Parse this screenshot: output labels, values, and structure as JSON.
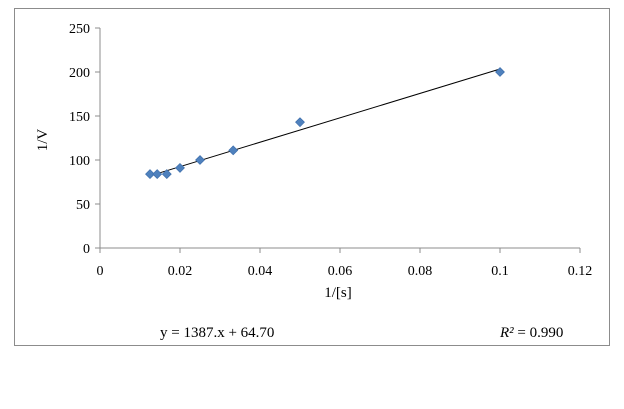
{
  "chart_data": {
    "type": "scatter",
    "xlabel": "1/[s]",
    "ylabel": "1/V",
    "xlim": [
      0,
      0.12
    ],
    "ylim": [
      0,
      250
    ],
    "x_ticks": [
      "0",
      "0.02",
      "0.04",
      "0.06",
      "0.08",
      "0.1",
      "0.12"
    ],
    "y_ticks": [
      "0",
      "50",
      "100",
      "150",
      "200",
      "250"
    ],
    "points": [
      {
        "x": 0.0125,
        "y": 84
      },
      {
        "x": 0.0143,
        "y": 84
      },
      {
        "x": 0.0167,
        "y": 84
      },
      {
        "x": 0.02,
        "y": 91
      },
      {
        "x": 0.025,
        "y": 100
      },
      {
        "x": 0.0333,
        "y": 111
      },
      {
        "x": 0.05,
        "y": 143
      },
      {
        "x": 0.1,
        "y": 200
      }
    ],
    "trendline": {
      "slope": 1387,
      "intercept": 64.7
    },
    "equation_text": "y = 1387.x + 64.70",
    "r2_label": "R²",
    "r2_value": "= 0.990",
    "marker_color": "#4f81bd",
    "line_color": "#000000"
  }
}
